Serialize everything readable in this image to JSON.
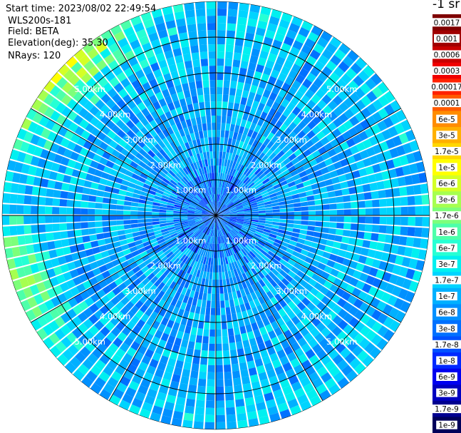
{
  "header": {
    "start_time": "Start time: 2023/08/02 22:49:54",
    "instrument": "WLS200s-181",
    "field": "Field: BETA",
    "elevation": "Elevation(deg): 35.30",
    "nrays": "NRays: 120"
  },
  "colorbar": {
    "unit_label": "-1 sr",
    "levels": [
      {
        "label": "0.0017",
        "color": "#7f0000"
      },
      {
        "label": "0.001",
        "color": "#a00000"
      },
      {
        "label": "0.0006",
        "color": "#c80000"
      },
      {
        "label": "0.0003",
        "color": "#f00000"
      },
      {
        "label": "0.00017",
        "color": "#ff2200"
      },
      {
        "label": "0.0001",
        "color": "#ff5a00"
      },
      {
        "label": "6e-5",
        "color": "#ff8c00"
      },
      {
        "label": "3e-5",
        "color": "#ffb000"
      },
      {
        "label": "1.7e-5",
        "color": "#ffd700"
      },
      {
        "label": "1e-5",
        "color": "#ffff00"
      },
      {
        "label": "6e-6",
        "color": "#d4ff26"
      },
      {
        "label": "3e-6",
        "color": "#a6ff4f"
      },
      {
        "label": "1.7e-6",
        "color": "#7dff7a"
      },
      {
        "label": "1e-6",
        "color": "#4dffaa"
      },
      {
        "label": "6e-7",
        "color": "#26ffd4"
      },
      {
        "label": "3e-7",
        "color": "#00f0f0"
      },
      {
        "label": "1.7e-7",
        "color": "#00d4ff"
      },
      {
        "label": "1e-7",
        "color": "#00b0ff"
      },
      {
        "label": "6e-8",
        "color": "#0090ff"
      },
      {
        "label": "3e-8",
        "color": "#0070ff"
      },
      {
        "label": "1.7e-8",
        "color": "#0050ff"
      },
      {
        "label": "1e-8",
        "color": "#0028ff"
      },
      {
        "label": "6e-9",
        "color": "#0000f0"
      },
      {
        "label": "3e-9",
        "color": "#0000c0"
      },
      {
        "label": "1.7e-9",
        "color": "#000090"
      },
      {
        "label": "1e-9",
        "color": "#00005a"
      }
    ]
  },
  "chart_data": {
    "type": "heatmap",
    "projection": "polar (PPI scan)",
    "field": "BETA",
    "elevation_deg": 35.3,
    "n_rays": 120,
    "max_range_km": 6,
    "range_rings_km": [
      1,
      2,
      3,
      4,
      5
    ],
    "ring_labels": [
      "1.00km",
      "2.00km",
      "3.00km",
      "4.00km",
      "5.00km"
    ],
    "radial_lines_deg": [
      0,
      30,
      60,
      90,
      120,
      150,
      180,
      210,
      240,
      270,
      300,
      330
    ],
    "value_range": [
      "1e-9",
      "0.0017"
    ],
    "dominant_values": [
      "3e-8",
      "1e-7",
      "3e-7"
    ],
    "notes": "Mostly cyan/blue (1e-8 to 3e-7) returns; green-yellow (1e-6 to 1e-5) patches near the outer edge at west and north-west."
  }
}
